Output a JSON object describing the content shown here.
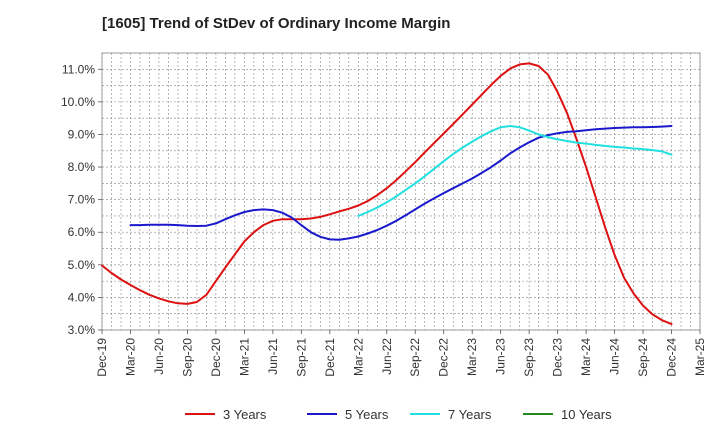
{
  "chart_data": {
    "type": "line",
    "title": "[1605]  Trend of StDev of Ordinary Income Margin",
    "xlabel": "",
    "ylabel": "",
    "ylim": [
      3.0,
      11.5
    ],
    "yticks": [
      3.0,
      4.0,
      5.0,
      6.0,
      7.0,
      8.0,
      9.0,
      10.0,
      11.0
    ],
    "ytick_labels": [
      "3.0%",
      "4.0%",
      "5.0%",
      "6.0%",
      "7.0%",
      "8.0%",
      "9.0%",
      "10.0%",
      "11.0%"
    ],
    "x_categories": [
      "Dec-19",
      "Mar-20",
      "Jun-20",
      "Sep-20",
      "Dec-20",
      "Mar-21",
      "Jun-21",
      "Sep-21",
      "Dec-21",
      "Mar-22",
      "Jun-22",
      "Sep-22",
      "Dec-22",
      "Mar-23",
      "Jun-23",
      "Sep-23",
      "Dec-23",
      "Mar-24",
      "Jun-24",
      "Sep-24",
      "Dec-24",
      "Mar-25"
    ],
    "grid": true,
    "legend_position": "bottom",
    "series": [
      {
        "name": "3 Years",
        "color": "#dd1111",
        "x": [
          "Dec-19",
          "Jan-20",
          "Feb-20",
          "Mar-20",
          "Apr-20",
          "May-20",
          "Jun-20",
          "Jul-20",
          "Aug-20",
          "Sep-20",
          "Oct-20",
          "Nov-20",
          "Dec-20",
          "Jan-21",
          "Feb-21",
          "Mar-21",
          "Apr-21",
          "May-21",
          "Jun-21",
          "Jul-21",
          "Aug-21",
          "Sep-21",
          "Oct-21",
          "Nov-21",
          "Dec-21",
          "Jan-22",
          "Feb-22",
          "Mar-22",
          "Apr-22",
          "May-22",
          "Jun-22",
          "Jul-22",
          "Aug-22",
          "Sep-22",
          "Oct-22",
          "Nov-22",
          "Dec-22",
          "Jan-23",
          "Feb-23",
          "Mar-23",
          "Apr-23",
          "May-23",
          "Jun-23",
          "Jul-23",
          "Aug-23",
          "Sep-23",
          "Oct-23",
          "Nov-23",
          "Dec-23",
          "Jan-24",
          "Feb-24",
          "Mar-24",
          "Apr-24",
          "May-24",
          "Jun-24",
          "Jul-24",
          "Aug-24",
          "Sep-24",
          "Oct-24",
          "Nov-24",
          "Dec-24"
        ],
        "values": [
          4.98,
          4.75,
          4.55,
          4.38,
          4.22,
          4.08,
          3.97,
          3.88,
          3.82,
          3.8,
          3.86,
          4.08,
          4.5,
          4.92,
          5.32,
          5.72,
          6.0,
          6.22,
          6.35,
          6.4,
          6.4,
          6.4,
          6.42,
          6.47,
          6.55,
          6.64,
          6.72,
          6.82,
          6.96,
          7.14,
          7.35,
          7.6,
          7.87,
          8.15,
          8.45,
          8.74,
          9.03,
          9.32,
          9.62,
          9.92,
          10.22,
          10.52,
          10.8,
          11.02,
          11.15,
          11.18,
          11.1,
          10.83,
          10.3,
          9.65,
          8.85,
          8.0,
          7.08,
          6.15,
          5.3,
          4.6,
          4.12,
          3.75,
          3.48,
          3.3,
          3.18
        ]
      },
      {
        "name": "5 Years",
        "color": "#1a1acc",
        "x": [
          "Mar-20",
          "Apr-20",
          "May-20",
          "Jun-20",
          "Jul-20",
          "Aug-20",
          "Sep-20",
          "Oct-20",
          "Nov-20",
          "Dec-20",
          "Jan-21",
          "Feb-21",
          "Mar-21",
          "Apr-21",
          "May-21",
          "Jun-21",
          "Jul-21",
          "Aug-21",
          "Sep-21",
          "Oct-21",
          "Nov-21",
          "Dec-21",
          "Jan-22",
          "Feb-22",
          "Mar-22",
          "Apr-22",
          "May-22",
          "Jun-22",
          "Jul-22",
          "Aug-22",
          "Sep-22",
          "Oct-22",
          "Nov-22",
          "Dec-22",
          "Jan-23",
          "Feb-23",
          "Mar-23",
          "Apr-23",
          "May-23",
          "Jun-23",
          "Jul-23",
          "Aug-23",
          "Sep-23",
          "Oct-23",
          "Nov-23",
          "Dec-23",
          "Jan-24",
          "Feb-24",
          "Mar-24",
          "Apr-24",
          "May-24",
          "Jun-24",
          "Jul-24",
          "Aug-24",
          "Sep-24",
          "Oct-24",
          "Nov-24",
          "Dec-24"
        ],
        "values": [
          6.22,
          6.22,
          6.23,
          6.23,
          6.23,
          6.22,
          6.2,
          6.19,
          6.2,
          6.27,
          6.4,
          6.52,
          6.62,
          6.68,
          6.7,
          6.68,
          6.6,
          6.45,
          6.22,
          6.0,
          5.86,
          5.78,
          5.77,
          5.81,
          5.87,
          5.96,
          6.07,
          6.2,
          6.35,
          6.52,
          6.7,
          6.88,
          7.04,
          7.2,
          7.35,
          7.5,
          7.65,
          7.82,
          8.0,
          8.2,
          8.42,
          8.6,
          8.76,
          8.9,
          8.98,
          9.04,
          9.08,
          9.1,
          9.13,
          9.16,
          9.18,
          9.2,
          9.21,
          9.22,
          9.22,
          9.23,
          9.24,
          9.26
        ]
      },
      {
        "name": "7 Years",
        "color": "#22e0e0",
        "x": [
          "Mar-22",
          "Apr-22",
          "May-22",
          "Jun-22",
          "Jul-22",
          "Aug-22",
          "Sep-22",
          "Oct-22",
          "Nov-22",
          "Dec-22",
          "Jan-23",
          "Feb-23",
          "Mar-23",
          "Apr-23",
          "May-23",
          "Jun-23",
          "Jul-23",
          "Aug-23",
          "Sep-23",
          "Oct-23",
          "Nov-23",
          "Dec-23",
          "Jan-24",
          "Feb-24",
          "Mar-24",
          "Apr-24",
          "May-24",
          "Jun-24",
          "Jul-24",
          "Aug-24",
          "Sep-24",
          "Oct-24",
          "Nov-24",
          "Dec-24"
        ],
        "values": [
          6.5,
          6.62,
          6.76,
          6.92,
          7.1,
          7.3,
          7.5,
          7.72,
          7.95,
          8.18,
          8.4,
          8.6,
          8.78,
          8.95,
          9.1,
          9.22,
          9.26,
          9.22,
          9.12,
          9.0,
          8.92,
          8.85,
          8.8,
          8.75,
          8.72,
          8.68,
          8.65,
          8.62,
          8.6,
          8.57,
          8.55,
          8.52,
          8.48,
          8.38
        ]
      },
      {
        "name": "10 Years",
        "color": "#228822",
        "x": [],
        "values": []
      }
    ]
  }
}
